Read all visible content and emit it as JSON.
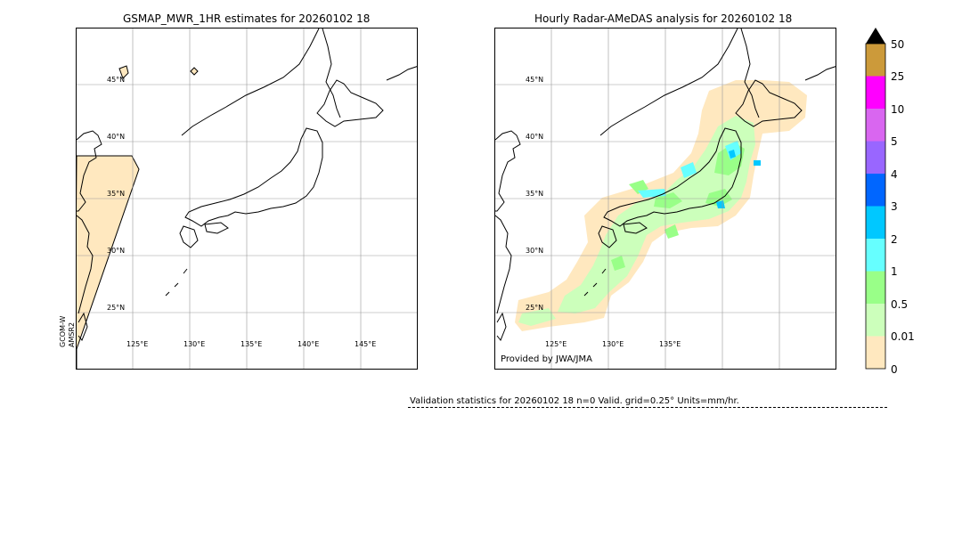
{
  "left_panel": {
    "title": "GSMAP_MWR_1HR estimates for 20260102 18",
    "side_label_line1": "GCOM-W",
    "side_label_line2": "AMSR2",
    "lat_labels": [
      "45°N",
      "40°N",
      "35°N",
      "30°N",
      "25°N"
    ],
    "lon_labels": [
      "125°E",
      "130°E",
      "135°E",
      "140°E",
      "145°E"
    ]
  },
  "right_panel": {
    "title": "Hourly Radar-AMeDAS analysis for 20260102 18",
    "credit": "Provided by JWA/JMA",
    "lat_labels": [
      "45°N",
      "40°N",
      "35°N",
      "30°N",
      "25°N"
    ],
    "lon_labels": [
      "125°E",
      "130°E",
      "135°E"
    ]
  },
  "colorbar": {
    "labels": [
      "50",
      "25",
      "10",
      "5",
      "4",
      "3",
      "2",
      "1",
      "0.5",
      "0.01",
      "0"
    ],
    "colors": [
      "#cc9a3a",
      "#ff00ff",
      "#d966f0",
      "#9966ff",
      "#0066ff",
      "#00c8ff",
      "#66ffff",
      "#99ff88",
      "#ccffbb",
      "#ffe8bf"
    ],
    "over_color": "#000000"
  },
  "validation": {
    "text": "Validation statistics for 20260102 18  n=0 Valid. grid=0.25° Units=mm/hr."
  },
  "colors": {
    "rain_light": "#ffe8bf",
    "rain_green_pale": "#ccffbb",
    "rain_green": "#99ff88",
    "rain_cyan": "#66ffff",
    "rain_blue": "#00c8ff"
  }
}
